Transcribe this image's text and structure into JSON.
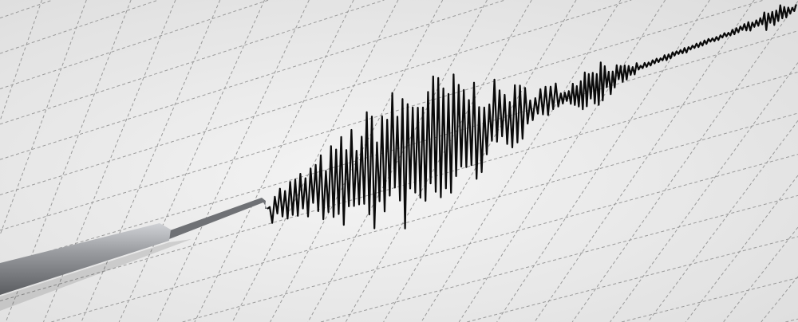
{
  "scene": {
    "subject": "seismograph",
    "colors": {
      "paper": "#ececec",
      "grid": "#9a9a9a",
      "trace": "#0a0a0a",
      "pen_body": "#8a8c90",
      "pen_highlight": "#c9cbcf"
    }
  }
}
